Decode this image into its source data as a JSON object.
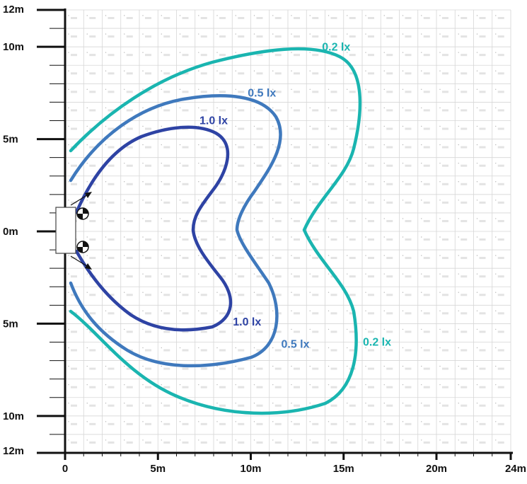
{
  "chart_data": {
    "type": "contour",
    "x_ticks": [
      {
        "value": 0,
        "label": "0"
      },
      {
        "value": 5,
        "label": "5m"
      },
      {
        "value": 10,
        "label": "10m"
      },
      {
        "value": 15,
        "label": "15m"
      },
      {
        "value": 20,
        "label": "20m"
      },
      {
        "value": 24,
        "label": "24m"
      }
    ],
    "y_ticks": [
      {
        "value": 12,
        "label": "12m"
      },
      {
        "value": 10,
        "label": "10m"
      },
      {
        "value": 5,
        "label": "5m"
      },
      {
        "value": 0,
        "label": "0m"
      },
      {
        "value": -5,
        "label": "5m"
      },
      {
        "value": -10,
        "label": "10m"
      },
      {
        "value": -12,
        "label": "12m"
      }
    ],
    "xlim": [
      0,
      24
    ],
    "ylim": [
      -12,
      12
    ],
    "grid": true,
    "contours": [
      {
        "name": "0.2 lx",
        "color": "#1ab5b0"
      },
      {
        "name": "0.5 lx",
        "color": "#3f79bd"
      },
      {
        "name": "1.0 lx",
        "color": "#2e43a4"
      }
    ],
    "contour_labels": [
      {
        "text": "0.2 lx",
        "color": "#1ab5b0",
        "x": 14.6,
        "y": 9.8
      },
      {
        "text": "0.5 lx",
        "color": "#3f79bd",
        "x": 10.6,
        "y": 7.3
      },
      {
        "text": "1.0 lx",
        "color": "#2e43a4",
        "x": 8.0,
        "y": 5.8
      },
      {
        "text": "1.0 lx",
        "color": "#2e43a4",
        "x": 9.8,
        "y": -5.1
      },
      {
        "text": "0.5 lx",
        "color": "#3f79bd",
        "x": 12.4,
        "y": -6.3
      },
      {
        "text": "0.2 lx",
        "color": "#1ab5b0",
        "x": 16.8,
        "y": -6.2
      }
    ]
  }
}
